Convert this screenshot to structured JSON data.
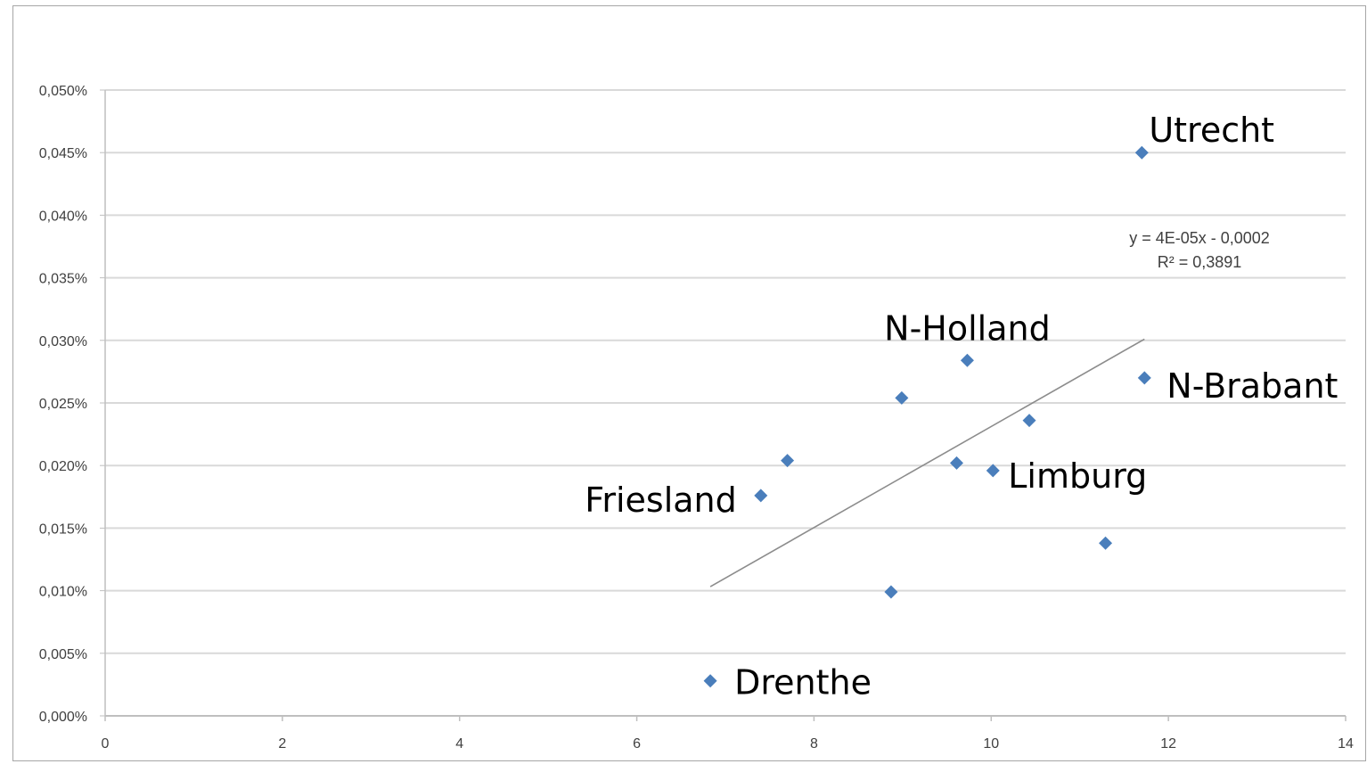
{
  "chart_data": {
    "type": "scatter",
    "title": "",
    "xlabel": "",
    "ylabel": "",
    "xlim": [
      0,
      14
    ],
    "ylim": [
      0,
      0.0005
    ],
    "x_ticks": [
      0,
      2,
      4,
      6,
      8,
      10,
      12,
      14
    ],
    "x_tick_labels": [
      "0",
      "2",
      "4",
      "6",
      "8",
      "10",
      "12",
      "14"
    ],
    "y_ticks": [
      0,
      5e-05,
      0.0001,
      0.00015,
      0.0002,
      0.00025,
      0.0003,
      0.00035,
      0.0004,
      0.00045,
      0.0005
    ],
    "y_tick_labels": [
      "0,000%",
      "0,005%",
      "0,010%",
      "0,015%",
      "0,020%",
      "0,025%",
      "0,030%",
      "0,035%",
      "0,040%",
      "0,045%",
      "0,050%"
    ],
    "grid": true,
    "marker_color": "#4a7ebb",
    "trendline_color": "#8c8c8c",
    "points": [
      {
        "x": 11.7,
        "y": 0.00045,
        "label": "Utrecht"
      },
      {
        "x": 9.73,
        "y": 0.000284,
        "label": "N-Holland"
      },
      {
        "x": 11.73,
        "y": 0.00027,
        "label": "N-Brabant"
      },
      {
        "x": 10.02,
        "y": 0.000196,
        "label": "Limburg"
      },
      {
        "x": 7.4,
        "y": 0.000176,
        "label": "Friesland"
      },
      {
        "x": 6.83,
        "y": 2.8e-05,
        "label": "Drenthe"
      },
      {
        "x": 8.99,
        "y": 0.000254,
        "label": ""
      },
      {
        "x": 7.7,
        "y": 0.000204,
        "label": ""
      },
      {
        "x": 9.61,
        "y": 0.000202,
        "label": ""
      },
      {
        "x": 10.43,
        "y": 0.000236,
        "label": ""
      },
      {
        "x": 11.29,
        "y": 0.000138,
        "label": ""
      },
      {
        "x": 8.87,
        "y": 9.9e-05,
        "label": ""
      }
    ],
    "trendline": {
      "x": [
        6.83,
        11.73
      ],
      "y": [
        0.0001032,
        0.000301
      ],
      "equation": "y = 4E-05x - 0,0002",
      "r_squared": "R² = 0,3891"
    }
  }
}
